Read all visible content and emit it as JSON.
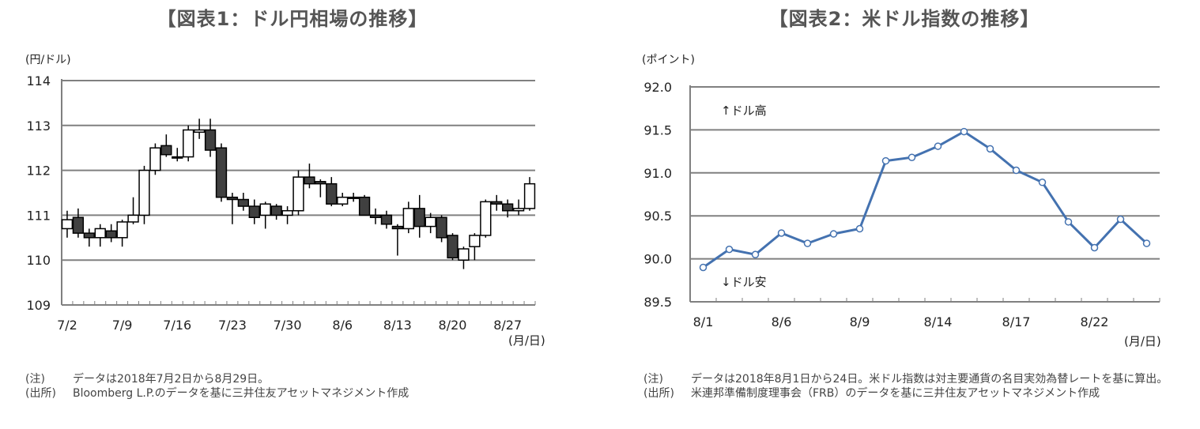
{
  "chart1": {
    "title": "【図表1：ドル円相場の推移】",
    "yunit": "(円/ドル)",
    "xunit": "(月/日)",
    "notes": [
      {
        "key": "(注)",
        "text": "データは2018年7月2日から8月29日。"
      },
      {
        "key": "(出所)",
        "text": "Bloomberg L.P.のデータを基に三井住友アセットマネジメント作成"
      }
    ]
  },
  "chart2": {
    "title": "【図表2：米ドル指数の推移】",
    "yunit": "(ポイント)",
    "xunit": "(月/日)",
    "annotation_up": "↑ドル高",
    "annotation_down": "↓ドル安",
    "notes": [
      {
        "key": "(注)",
        "text": "データは2018年8月1日から24日。米ドル指数は対主要通貨の名目実効為替レートを基に算出。"
      },
      {
        "key": "(出所)",
        "text": "米連邦準備制度理事会（FRB）のデータを基に三井住友アセットマネジメント作成"
      }
    ]
  },
  "chart_data": [
    {
      "type": "candlestick",
      "ylim": [
        109,
        114
      ],
      "yticks": [
        "109",
        "110",
        "111",
        "112",
        "113",
        "114"
      ],
      "xticks": [
        {
          "label": "7/2",
          "index": 0
        },
        {
          "label": "7/9",
          "index": 5
        },
        {
          "label": "7/16",
          "index": 10
        },
        {
          "label": "7/23",
          "index": 15
        },
        {
          "label": "7/30",
          "index": 20
        },
        {
          "label": "8/6",
          "index": 25
        },
        {
          "label": "8/13",
          "index": 30
        },
        {
          "label": "8/20",
          "index": 35
        },
        {
          "label": "8/27",
          "index": 40
        }
      ],
      "grid": true,
      "ohlc": [
        [
          110.7,
          111.1,
          110.5,
          110.9
        ],
        [
          110.95,
          111.15,
          110.5,
          110.6
        ],
        [
          110.6,
          110.7,
          110.3,
          110.5
        ],
        [
          110.5,
          110.8,
          110.3,
          110.7
        ],
        [
          110.65,
          110.8,
          110.4,
          110.5
        ],
        [
          110.5,
          110.9,
          110.3,
          110.85
        ],
        [
          110.85,
          111.4,
          110.8,
          111.0
        ],
        [
          111.0,
          112.1,
          110.8,
          112.0
        ],
        [
          112.0,
          112.6,
          111.9,
          112.5
        ],
        [
          112.55,
          112.8,
          112.3,
          112.35
        ],
        [
          112.3,
          112.5,
          112.2,
          112.3
        ],
        [
          112.3,
          113.0,
          112.2,
          112.9
        ],
        [
          112.85,
          113.15,
          112.7,
          112.9
        ],
        [
          112.9,
          113.15,
          112.3,
          112.45
        ],
        [
          112.5,
          112.6,
          111.3,
          111.4
        ],
        [
          111.4,
          111.5,
          110.8,
          111.35
        ],
        [
          111.35,
          111.5,
          111.1,
          111.2
        ],
        [
          111.2,
          111.35,
          110.8,
          110.95
        ],
        [
          111.0,
          111.3,
          110.7,
          111.25
        ],
        [
          111.2,
          111.25,
          110.9,
          111.0
        ],
        [
          111.0,
          111.2,
          110.8,
          111.1
        ],
        [
          111.1,
          112.0,
          111.0,
          111.85
        ],
        [
          111.85,
          112.15,
          111.6,
          111.7
        ],
        [
          111.75,
          111.8,
          111.4,
          111.7
        ],
        [
          111.7,
          111.85,
          111.2,
          111.25
        ],
        [
          111.25,
          111.5,
          111.2,
          111.4
        ],
        [
          111.4,
          111.5,
          111.3,
          111.4
        ],
        [
          111.4,
          111.45,
          111.0,
          111.0
        ],
        [
          111.0,
          111.15,
          110.8,
          110.95
        ],
        [
          111.0,
          111.1,
          110.7,
          110.8
        ],
        [
          110.75,
          110.8,
          110.1,
          110.7
        ],
        [
          110.7,
          111.3,
          110.6,
          111.15
        ],
        [
          111.15,
          111.45,
          110.5,
          110.75
        ],
        [
          110.75,
          111.05,
          110.6,
          110.95
        ],
        [
          110.95,
          111.0,
          110.4,
          110.5
        ],
        [
          110.55,
          110.6,
          110.0,
          110.05
        ],
        [
          110.0,
          110.3,
          109.8,
          110.25
        ],
        [
          110.3,
          110.6,
          110.0,
          110.55
        ],
        [
          110.55,
          111.35,
          110.5,
          111.3
        ],
        [
          111.3,
          111.45,
          111.1,
          111.25
        ],
        [
          111.25,
          111.35,
          110.95,
          111.1
        ],
        [
          111.1,
          111.35,
          111.0,
          111.15
        ],
        [
          111.15,
          111.85,
          111.1,
          111.7
        ]
      ]
    },
    {
      "type": "line",
      "ylim": [
        89.5,
        92.0
      ],
      "yticks": [
        "89.5",
        "90.0",
        "90.5",
        "91.0",
        "91.5",
        "92.0"
      ],
      "xticks": [
        {
          "label": "8/1",
          "index": 0
        },
        {
          "label": "8/6",
          "index": 3
        },
        {
          "label": "8/9",
          "index": 6
        },
        {
          "label": "8/14",
          "index": 9
        },
        {
          "label": "8/17",
          "index": 12
        },
        {
          "label": "8/22",
          "index": 15
        }
      ],
      "grid": true,
      "color": "#4472b0",
      "series": [
        {
          "values": [
            89.9,
            90.11,
            90.05,
            90.3,
            90.18,
            90.29,
            90.35,
            91.14,
            91.18,
            91.31,
            91.48,
            91.28,
            91.03,
            90.89,
            90.43,
            90.13,
            90.46,
            90.18
          ]
        }
      ]
    }
  ]
}
